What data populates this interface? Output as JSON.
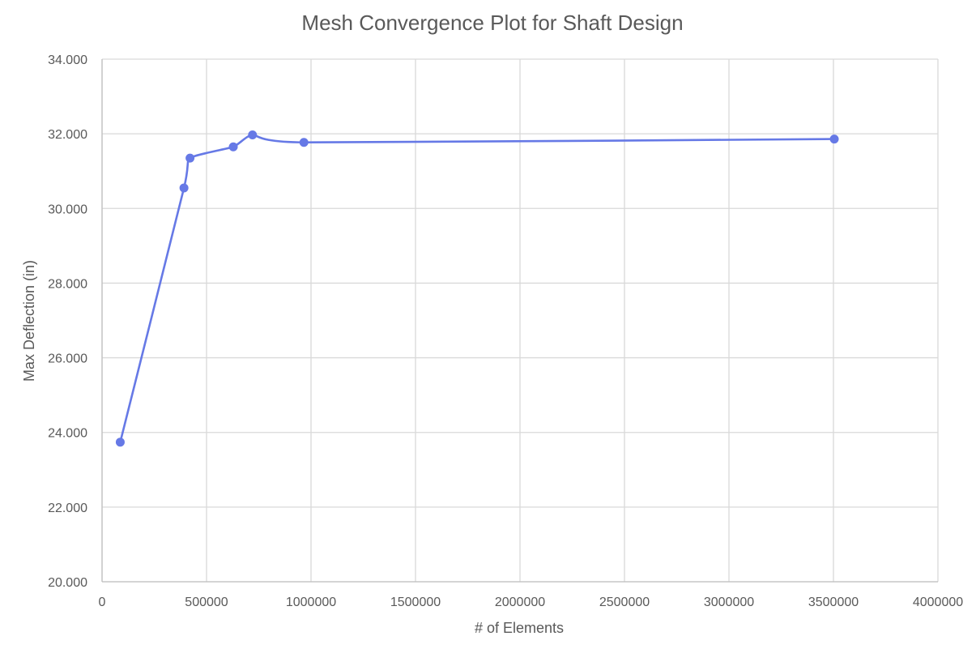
{
  "chart_data": {
    "type": "scatter",
    "title": "Mesh Convergence Plot for Shaft Design",
    "xlabel": "# of Elements",
    "ylabel": "Max Deflection (in)",
    "xlim": [
      0,
      4000000
    ],
    "ylim": [
      20,
      34
    ],
    "x_ticks": [
      0,
      500000,
      1000000,
      1500000,
      2000000,
      2500000,
      3000000,
      3500000,
      4000000
    ],
    "x_tick_labels": [
      "0",
      "500000",
      "1000000",
      "1500000",
      "2000000",
      "2500000",
      "3000000",
      "3500000",
      "4000000"
    ],
    "y_ticks": [
      20,
      22,
      24,
      26,
      28,
      30,
      32,
      34
    ],
    "y_tick_labels": [
      "20.000",
      "22.000",
      "24.000",
      "26.000",
      "28.000",
      "30.000",
      "32.000",
      "34.000"
    ],
    "grid": true,
    "legend": "none",
    "line_style": "smoothed line with markers",
    "series": [
      {
        "color": "#6679e6",
        "points": [
          {
            "x": 87000,
            "y": 23.74
          },
          {
            "x": 392000,
            "y": 30.55
          },
          {
            "x": 421000,
            "y": 31.35
          },
          {
            "x": 628000,
            "y": 31.65
          },
          {
            "x": 720000,
            "y": 31.97
          },
          {
            "x": 966000,
            "y": 31.77
          },
          {
            "x": 3504000,
            "y": 31.86
          }
        ]
      }
    ]
  }
}
